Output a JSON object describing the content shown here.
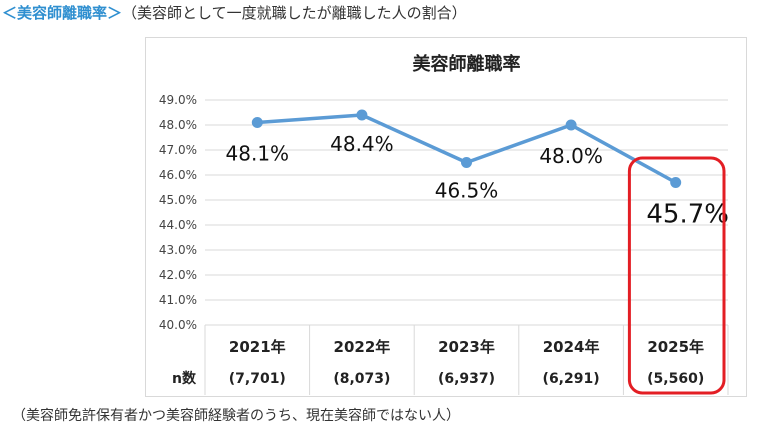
{
  "heading": {
    "accent": "＜美容師離職率＞",
    "subtitle": "（美容師として一度就職したが離職した人の割合）"
  },
  "footnote": "（美容師免許保有者かつ美容師経験者のうち、現在美容師ではない人）",
  "colors": {
    "line": "#5b9bd5",
    "highlight": "#e31e24",
    "accent": "#2f8fd0"
  },
  "chart_data": {
    "type": "line",
    "title": "美容師離職率",
    "categories": [
      "2021年",
      "2022年",
      "2023年",
      "2024年",
      "2025年"
    ],
    "sample_label": "n数",
    "sample_sizes": [
      "(7,701)",
      "(8,073)",
      "(6,937)",
      "(6,291)",
      "(5,560)"
    ],
    "values": [
      48.1,
      48.4,
      46.5,
      48.0,
      45.7
    ],
    "data_labels": [
      "48.1%",
      "48.4%",
      "46.5%",
      "48.0%",
      "45.7%"
    ],
    "ylim": [
      40.0,
      49.0
    ],
    "yticks": [
      "40.0%",
      "41.0%",
      "42.0%",
      "43.0%",
      "44.0%",
      "45.0%",
      "46.0%",
      "47.0%",
      "48.0%",
      "49.0%"
    ],
    "grid": true,
    "highlight_category": "2025年"
  }
}
